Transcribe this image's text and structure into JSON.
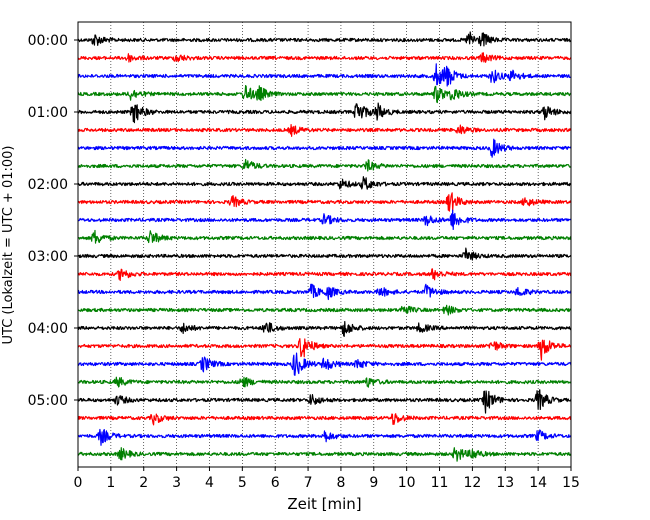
{
  "chart_data": {
    "type": "line",
    "title": "",
    "xlabel": "Zeit  [min]",
    "ylabel": "UTC (Lokalzeit = UTC + 01:00)",
    "xlim": [
      0,
      15
    ],
    "x_ticks": [
      "0",
      "1",
      "2",
      "3",
      "4",
      "5",
      "6",
      "7",
      "8",
      "9",
      "10",
      "11",
      "12",
      "13",
      "14",
      "15"
    ],
    "y_tick_labels": [
      "00:00",
      "01:00",
      "02:00",
      "03:00",
      "04:00",
      "05:00"
    ],
    "grid": "vertical-dotted",
    "trace_interval_min": 15,
    "trace_count": 24,
    "colors": [
      "#000000",
      "#ff0000",
      "#0000ff",
      "#008000"
    ],
    "traces": [
      {
        "start": "00:00",
        "color": "#000000",
        "events": [
          {
            "t": 0.5,
            "amp": 0.4
          },
          {
            "t": 11.9,
            "amp": 0.5
          },
          {
            "t": 12.3,
            "amp": 0.35
          }
        ]
      },
      {
        "start": "00:15",
        "color": "#ff0000",
        "events": [
          {
            "t": 1.5,
            "amp": 0.25
          },
          {
            "t": 3.0,
            "amp": 0.25
          },
          {
            "t": 12.3,
            "amp": 0.3
          }
        ]
      },
      {
        "start": "00:30",
        "color": "#0000ff",
        "events": [
          {
            "t": 10.9,
            "amp": 0.7
          },
          {
            "t": 11.2,
            "amp": 0.6
          },
          {
            "t": 12.6,
            "amp": 0.45
          },
          {
            "t": 13.2,
            "amp": 0.35
          }
        ]
      },
      {
        "start": "00:45",
        "color": "#008000",
        "events": [
          {
            "t": 1.6,
            "amp": 0.35
          },
          {
            "t": 5.1,
            "amp": 0.55
          },
          {
            "t": 5.5,
            "amp": 0.4
          },
          {
            "t": 10.9,
            "amp": 0.55
          },
          {
            "t": 11.4,
            "amp": 0.4
          }
        ]
      },
      {
        "start": "01:00",
        "color": "#000000",
        "events": [
          {
            "t": 1.7,
            "amp": 0.7
          },
          {
            "t": 8.5,
            "amp": 0.75
          },
          {
            "t": 9.1,
            "amp": 0.5
          },
          {
            "t": 14.2,
            "amp": 0.45
          }
        ]
      },
      {
        "start": "01:15",
        "color": "#ff0000",
        "events": [
          {
            "t": 6.5,
            "amp": 0.3
          },
          {
            "t": 11.6,
            "amp": 0.3
          }
        ]
      },
      {
        "start": "01:30",
        "color": "#0000ff",
        "events": [
          {
            "t": 12.6,
            "amp": 0.6
          }
        ]
      },
      {
        "start": "01:45",
        "color": "#008000",
        "events": [
          {
            "t": 5.1,
            "amp": 0.4
          },
          {
            "t": 8.8,
            "amp": 0.35
          }
        ]
      },
      {
        "start": "02:00",
        "color": "#000000",
        "events": [
          {
            "t": 8.0,
            "amp": 0.3
          },
          {
            "t": 8.7,
            "amp": 0.45
          }
        ]
      },
      {
        "start": "02:15",
        "color": "#ff0000",
        "events": [
          {
            "t": 4.7,
            "amp": 0.35
          },
          {
            "t": 11.3,
            "amp": 0.7
          },
          {
            "t": 13.6,
            "amp": 0.3
          }
        ]
      },
      {
        "start": "02:30",
        "color": "#0000ff",
        "events": [
          {
            "t": 7.5,
            "amp": 0.35
          },
          {
            "t": 10.6,
            "amp": 0.35
          },
          {
            "t": 11.4,
            "amp": 0.6
          }
        ]
      },
      {
        "start": "02:45",
        "color": "#008000",
        "events": [
          {
            "t": 0.5,
            "amp": 0.45
          },
          {
            "t": 2.2,
            "amp": 0.45
          }
        ]
      },
      {
        "start": "03:00",
        "color": "#000000",
        "events": [
          {
            "t": 11.8,
            "amp": 0.4
          }
        ]
      },
      {
        "start": "03:15",
        "color": "#ff0000",
        "events": [
          {
            "t": 1.3,
            "amp": 0.4
          },
          {
            "t": 10.8,
            "amp": 0.35
          }
        ]
      },
      {
        "start": "03:30",
        "color": "#0000ff",
        "events": [
          {
            "t": 7.1,
            "amp": 0.45
          },
          {
            "t": 7.6,
            "amp": 0.35
          },
          {
            "t": 9.2,
            "amp": 0.3
          },
          {
            "t": 10.6,
            "amp": 0.45
          },
          {
            "t": 13.4,
            "amp": 0.3
          }
        ]
      },
      {
        "start": "03:45",
        "color": "#008000",
        "events": [
          {
            "t": 9.9,
            "amp": 0.3
          },
          {
            "t": 11.2,
            "amp": 0.3
          }
        ]
      },
      {
        "start": "04:00",
        "color": "#000000",
        "events": [
          {
            "t": 3.2,
            "amp": 0.3
          },
          {
            "t": 5.7,
            "amp": 0.45
          },
          {
            "t": 8.1,
            "amp": 0.5
          },
          {
            "t": 10.4,
            "amp": 0.3
          }
        ]
      },
      {
        "start": "04:15",
        "color": "#ff0000",
        "events": [
          {
            "t": 6.8,
            "amp": 0.85
          },
          {
            "t": 12.6,
            "amp": 0.35
          },
          {
            "t": 14.1,
            "amp": 0.8
          }
        ]
      },
      {
        "start": "04:30",
        "color": "#0000ff",
        "events": [
          {
            "t": 3.8,
            "amp": 0.5
          },
          {
            "t": 6.6,
            "amp": 0.85
          },
          {
            "t": 7.5,
            "amp": 0.45
          },
          {
            "t": 8.5,
            "amp": 0.3
          }
        ]
      },
      {
        "start": "04:45",
        "color": "#008000",
        "events": [
          {
            "t": 1.2,
            "amp": 0.3
          },
          {
            "t": 5.0,
            "amp": 0.35
          },
          {
            "t": 8.8,
            "amp": 0.3
          }
        ]
      },
      {
        "start": "05:00",
        "color": "#000000",
        "events": [
          {
            "t": 1.2,
            "amp": 0.3
          },
          {
            "t": 7.1,
            "amp": 0.35
          },
          {
            "t": 12.4,
            "amp": 0.75
          },
          {
            "t": 14.0,
            "amp": 0.7
          }
        ]
      },
      {
        "start": "05:15",
        "color": "#ff0000",
        "events": [
          {
            "t": 2.3,
            "amp": 0.35
          },
          {
            "t": 9.6,
            "amp": 0.4
          }
        ]
      },
      {
        "start": "05:30",
        "color": "#0000ff",
        "events": [
          {
            "t": 0.7,
            "amp": 0.5
          },
          {
            "t": 7.5,
            "amp": 0.35
          },
          {
            "t": 14.0,
            "amp": 0.35
          }
        ]
      },
      {
        "start": "05:45",
        "color": "#008000",
        "events": [
          {
            "t": 1.3,
            "amp": 0.35
          },
          {
            "t": 11.5,
            "amp": 0.5
          },
          {
            "t": 12.0,
            "amp": 0.3
          }
        ]
      }
    ]
  }
}
